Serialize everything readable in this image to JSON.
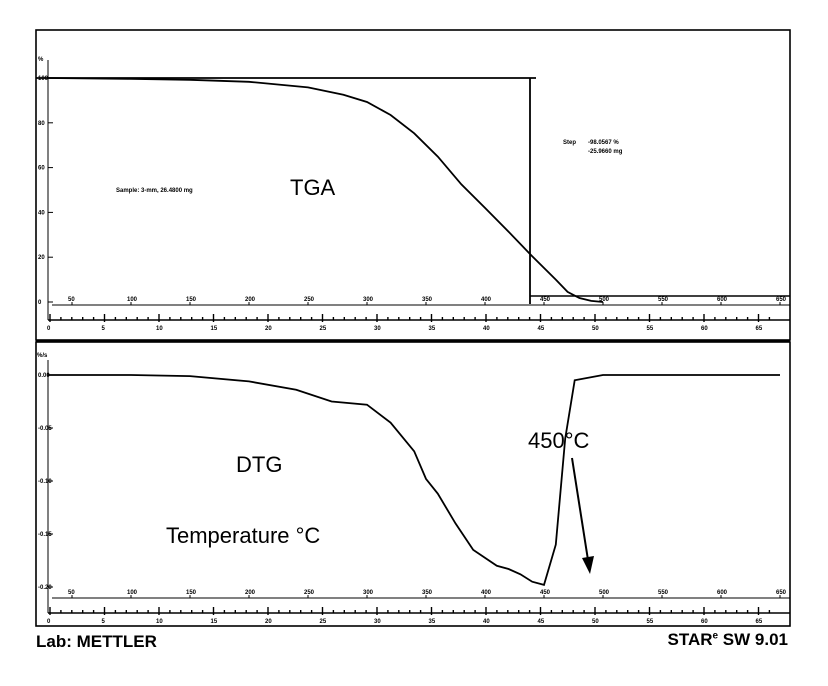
{
  "chart_data": [
    {
      "type": "line",
      "title": "TGA",
      "ylabel": "%",
      "xlabel": "",
      "ylim": [
        0,
        100
      ],
      "yticks": [
        0,
        20,
        40,
        60,
        80,
        100
      ],
      "temperature_ticks": [
        50,
        100,
        150,
        200,
        250,
        300,
        350,
        400,
        450,
        500,
        550,
        600,
        650
      ],
      "time_ticks": [
        0,
        5,
        10,
        15,
        20,
        25,
        30,
        35,
        40,
        45,
        50,
        55,
        60,
        65
      ],
      "series": [
        {
          "x": [
            30,
            100,
            150,
            200,
            250,
            280,
            300,
            320,
            340,
            360,
            380,
            400,
            420,
            440,
            460,
            470,
            480,
            490,
            500
          ],
          "values": [
            100,
            99.6,
            99.2,
            98.3,
            95.8,
            92.5,
            89.3,
            83.5,
            75.3,
            64.9,
            52.5,
            42.0,
            31.4,
            20.4,
            10.0,
            4.5,
            1.8,
            0.5,
            0
          ]
        }
      ],
      "sample_label": "Sample: 3-mm, 26.4800 mg",
      "step_label": "Step",
      "step_percent": "-98.0567 %",
      "step_mass": "-25.9660 mg"
    },
    {
      "type": "line",
      "title": "DTG",
      "xlabel": "Temperature °C",
      "ylabel": "%/s",
      "yticks": [
        "0.00",
        "-0.05",
        "-0.10",
        "-0.15",
        "-0.20"
      ],
      "ylim": [
        -0.2,
        0
      ],
      "temperature_ticks": [
        50,
        100,
        150,
        200,
        250,
        300,
        350,
        400,
        450,
        500,
        550,
        600,
        650
      ],
      "time_ticks": [
        0,
        5,
        10,
        15,
        20,
        25,
        30,
        35,
        40,
        45,
        50,
        55,
        60,
        65
      ],
      "series": [
        {
          "x": [
            30,
            100,
            150,
            200,
            240,
            270,
            300,
            320,
            340,
            350,
            360,
            375,
            390,
            410,
            420,
            430,
            440,
            450,
            460,
            468,
            476,
            500,
            550,
            600,
            650
          ],
          "values": [
            0,
            0,
            -0.001,
            -0.006,
            -0.014,
            -0.025,
            -0.028,
            -0.045,
            -0.072,
            -0.098,
            -0.112,
            -0.14,
            -0.165,
            -0.18,
            -0.183,
            -0.188,
            -0.195,
            -0.198,
            -0.16,
            -0.06,
            -0.005,
            0,
            0,
            0,
            0
          ]
        }
      ],
      "annotation": "450°C"
    }
  ],
  "footer": {
    "lab": "Lab: METTLER",
    "software": "STAR",
    "software_version": "SW 9.01",
    "registered_mark": "e"
  }
}
